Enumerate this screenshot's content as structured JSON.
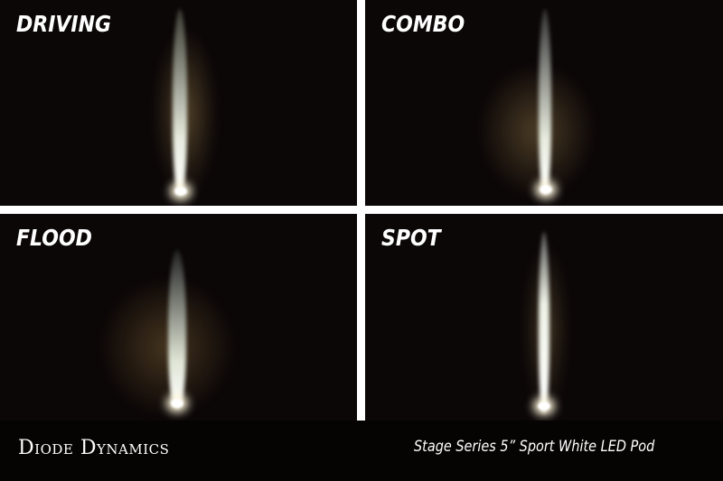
{
  "panels": [
    {
      "label": "DRIVING"
    },
    {
      "label": "COMBO"
    },
    {
      "label": "FLOOD"
    },
    {
      "label": "SPOT"
    }
  ],
  "footer": {
    "brand": "Diode Dynamics",
    "product": "Stage Series 5” Sport White LED Pod"
  }
}
